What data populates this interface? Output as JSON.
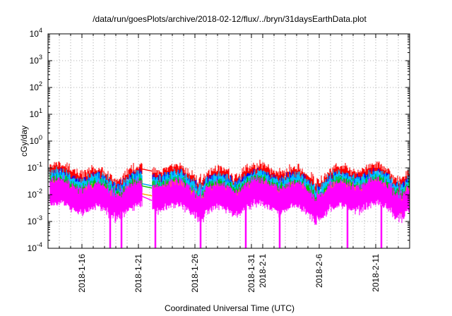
{
  "chart_data": {
    "type": "line",
    "title": "/data/run/goesPlots/archive/2018-02-12/flux/../bryn/31daysEarthData.plot",
    "xlabel": "Coordinated Universal Time (UTC)",
    "ylabel": "cGy/day",
    "yscale": "log",
    "ylim": [
      0.0001,
      10000
    ],
    "xlim": [
      "2018-01-13",
      "2018-02-14"
    ],
    "grid": true,
    "y_ticks": [
      {
        "mantissa": "10",
        "exp": "-4"
      },
      {
        "mantissa": "10",
        "exp": "-3"
      },
      {
        "mantissa": "10",
        "exp": "-2"
      },
      {
        "mantissa": "10",
        "exp": "-1"
      },
      {
        "mantissa": "10",
        "exp": "0"
      },
      {
        "mantissa": "10",
        "exp": "1"
      },
      {
        "mantissa": "10",
        "exp": "2"
      },
      {
        "mantissa": "10",
        "exp": "3"
      },
      {
        "mantissa": "10",
        "exp": "4"
      }
    ],
    "x_tick_labels": [
      "2018-1-16",
      "2018-1-21",
      "2018-1-26",
      "2018-1-31",
      "2018-2-1",
      "2018-2-6",
      "2018-2-11"
    ],
    "x_tick_dates": [
      "2018-01-16",
      "2018-01-21",
      "2018-01-26",
      "2018-01-31",
      "2018-02-01",
      "2018-02-06",
      "2018-02-11"
    ],
    "data_gap": [
      "2018-01-21",
      "2018-01-22"
    ],
    "dropouts": [
      "2018-01-18",
      "2018-01-19",
      "2018-01-22",
      "2018-01-26",
      "2018-01-30",
      "2018-02-02",
      "2018-02-08",
      "2018-02-11"
    ],
    "series": [
      {
        "color": "#ff0000",
        "typical_range": [
          0.035,
          0.09
        ]
      },
      {
        "color": "#0000ff",
        "typical_range": [
          0.012,
          0.05
        ]
      },
      {
        "color": "#00c0ff",
        "typical_range": [
          0.012,
          0.05
        ]
      },
      {
        "color": "#00c000",
        "typical_range": [
          0.01,
          0.03
        ]
      },
      {
        "color": "#ffa500",
        "typical_range": [
          0.005,
          0.02
        ]
      },
      {
        "color": "#ff00ff",
        "typical_range": [
          0.003,
          0.025
        ]
      }
    ]
  }
}
